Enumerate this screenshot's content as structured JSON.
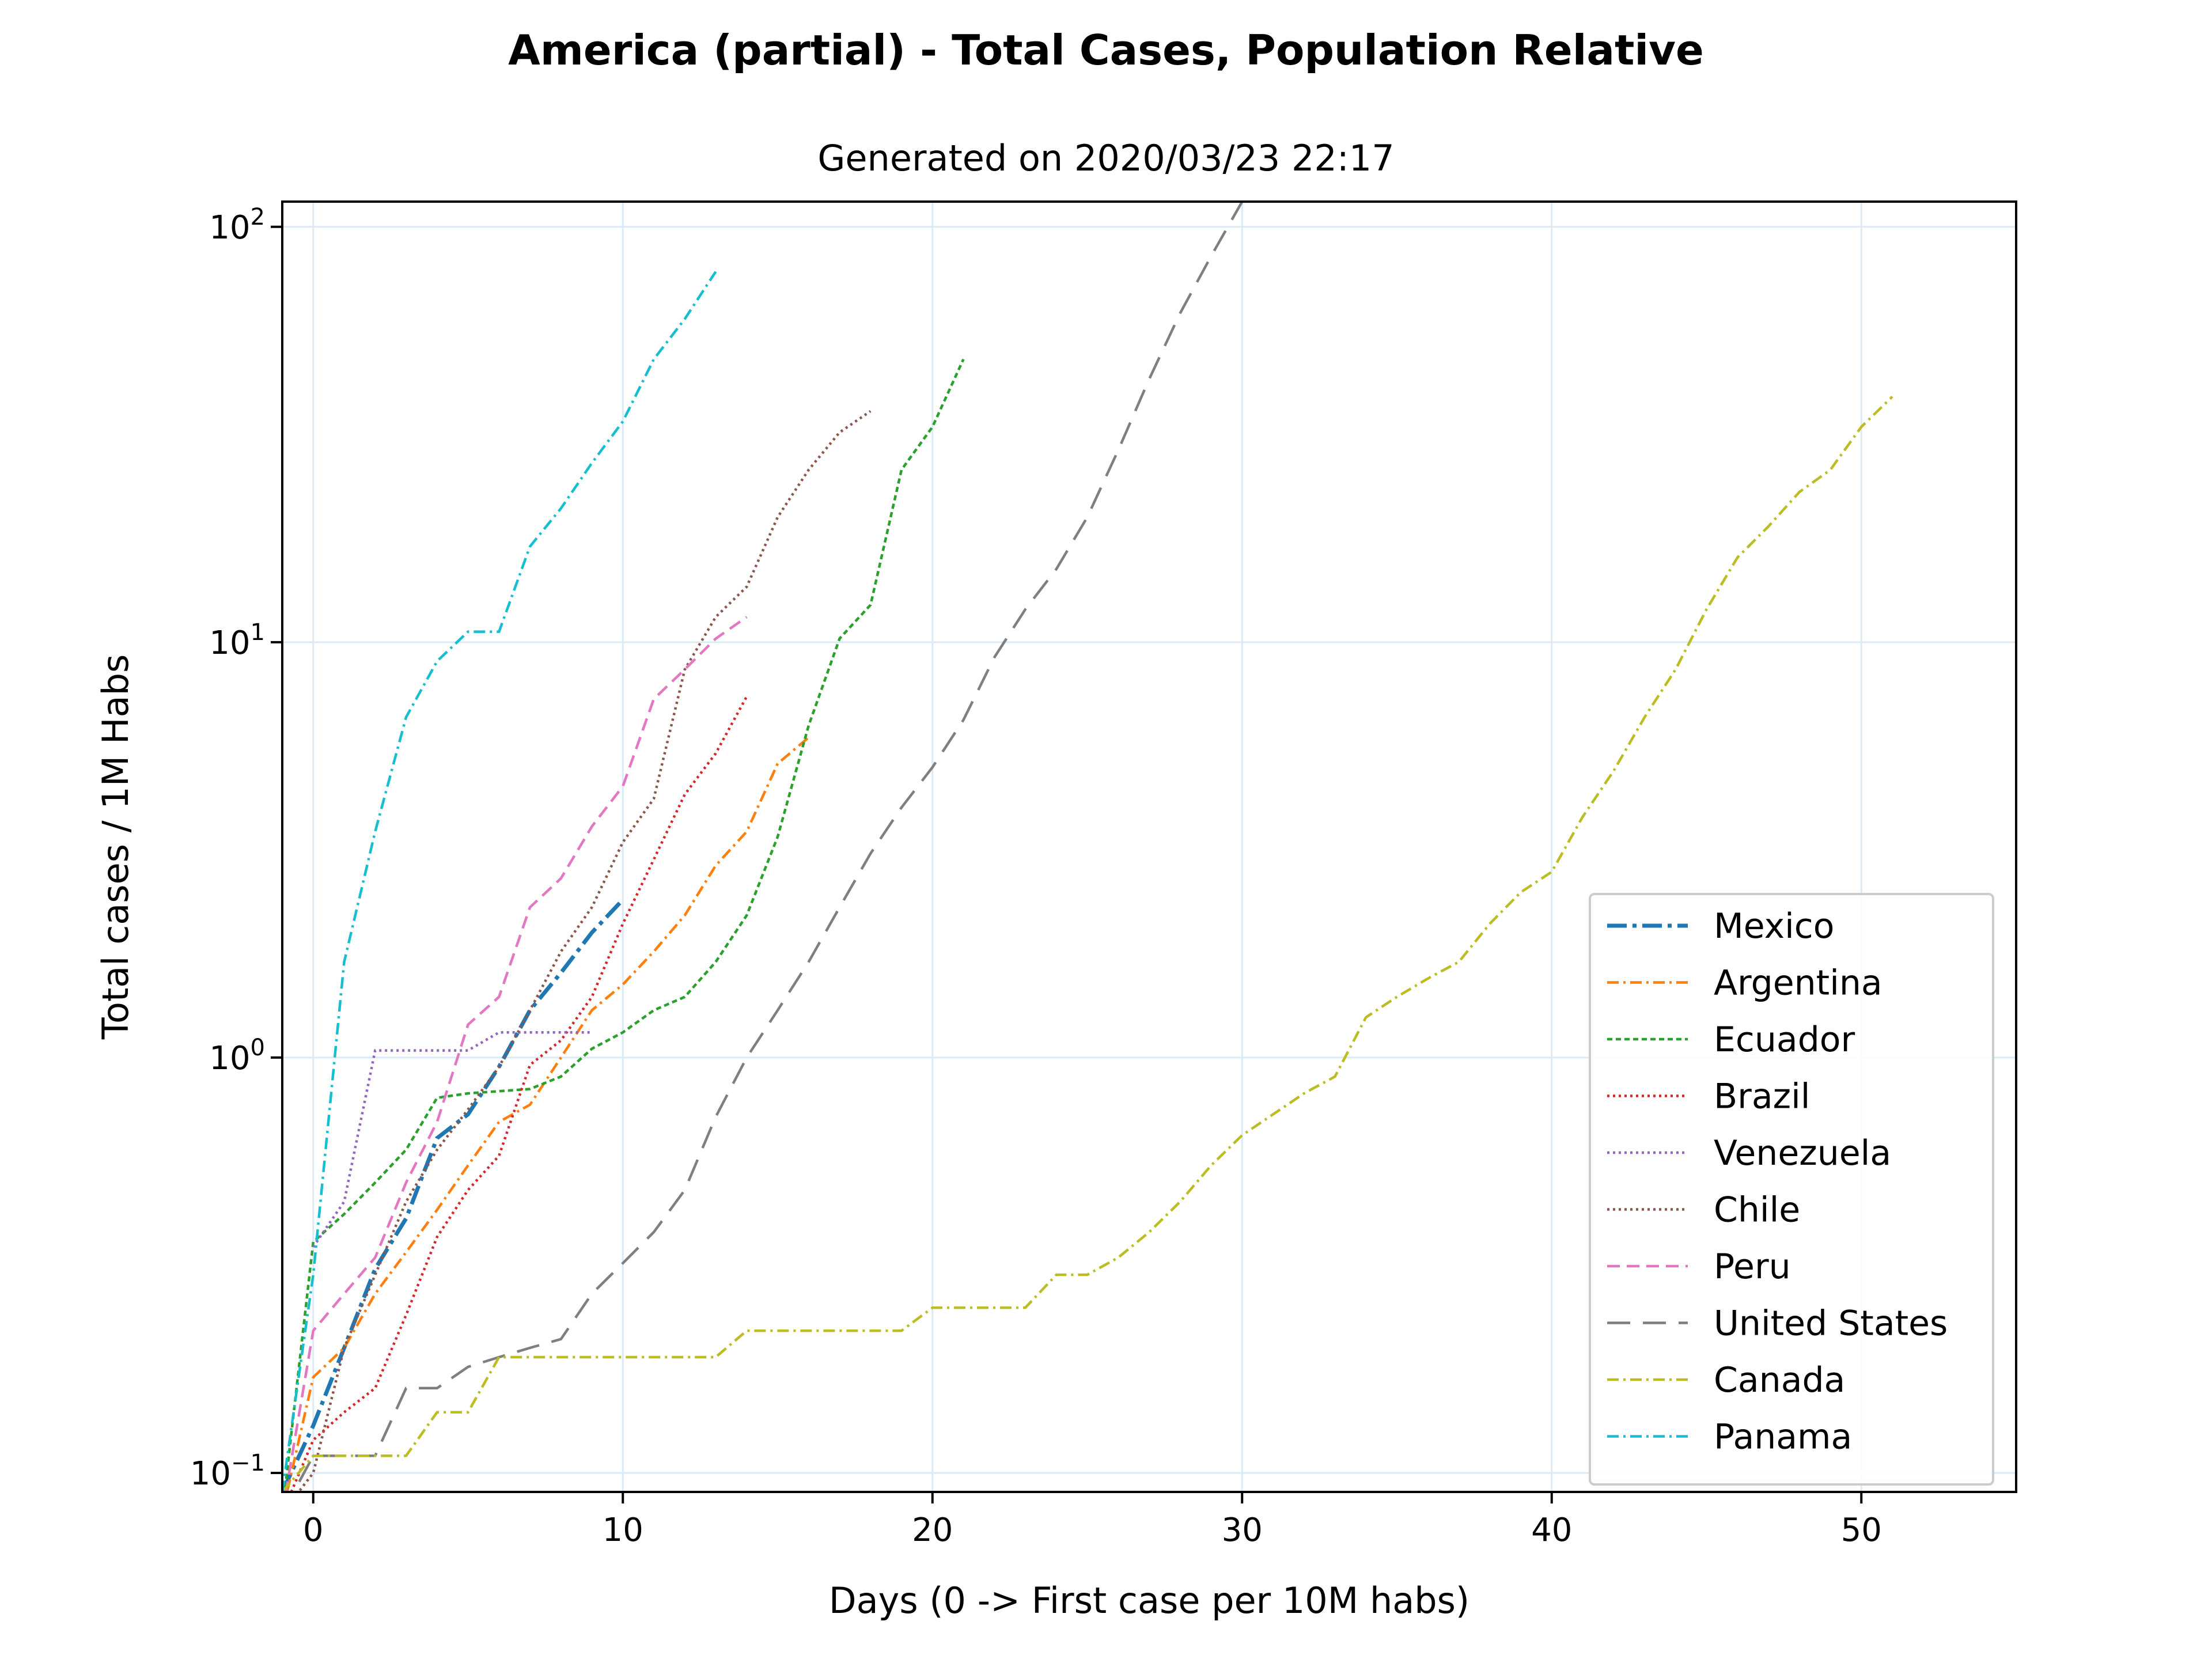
{
  "chart_data": {
    "type": "line",
    "title": "America (partial) - Total Cases, Population Relative",
    "subtitle": "Generated on 2020/03/23 22:17",
    "xlabel": "Days (0 -> First case per 10M habs)",
    "ylabel": "Total cases / 1M Habs",
    "xlim": [
      -1,
      55
    ],
    "ylim": [
      0.09,
      115
    ],
    "yscale": "log",
    "xticks": [
      0,
      10,
      20,
      30,
      40,
      50
    ],
    "yticks": [
      {
        "value": 0.1,
        "base": "10",
        "exp": "−1"
      },
      {
        "value": 1,
        "base": "10",
        "exp": "0"
      },
      {
        "value": 10,
        "base": "10",
        "exp": "1"
      },
      {
        "value": 100,
        "base": "10",
        "exp": "2"
      }
    ],
    "grid": true,
    "legend_position": "lower-right",
    "series": [
      {
        "name": "Mexico",
        "color": "#1f77b4",
        "dash": "dashdot-long",
        "x": [
          -1,
          0,
          1,
          2,
          3,
          4,
          5,
          6,
          7,
          8,
          9,
          10
        ],
        "y": [
          0.09,
          0.13,
          0.2,
          0.31,
          0.41,
          0.64,
          0.73,
          0.95,
          1.3,
          1.6,
          2.0,
          2.4
        ]
      },
      {
        "name": "Argentina",
        "color": "#ff7f0e",
        "dash": "dashdot",
        "x": [
          -1,
          0,
          1,
          2,
          3,
          4,
          5,
          6,
          7,
          8,
          9,
          10,
          11,
          12,
          13,
          14,
          15,
          16
        ],
        "y": [
          0.08,
          0.17,
          0.2,
          0.27,
          0.34,
          0.43,
          0.55,
          0.7,
          0.77,
          1.0,
          1.3,
          1.5,
          1.8,
          2.2,
          2.9,
          3.5,
          5.1,
          5.9
        ]
      },
      {
        "name": "Ecuador",
        "color": "#2ca02c",
        "dash": "dense-dash",
        "x": [
          -1,
          0,
          1,
          2,
          3,
          4,
          5,
          6,
          7,
          8,
          9,
          10,
          11,
          12,
          13,
          14,
          15,
          16,
          17,
          18,
          19,
          20,
          21
        ],
        "y": [
          0.08,
          0.36,
          0.42,
          0.5,
          0.6,
          0.8,
          0.82,
          0.83,
          0.84,
          0.9,
          1.05,
          1.15,
          1.3,
          1.4,
          1.7,
          2.2,
          3.4,
          6.3,
          10.2,
          12.3,
          26,
          33,
          48
        ]
      },
      {
        "name": "Brazil",
        "color": "#d62728",
        "dash": "dotted",
        "x": [
          -1,
          0,
          1,
          2,
          3,
          4,
          5,
          6,
          7,
          8,
          9,
          10,
          11,
          12,
          13,
          14
        ],
        "y": [
          0.08,
          0.12,
          0.14,
          0.16,
          0.24,
          0.37,
          0.48,
          0.58,
          0.96,
          1.1,
          1.4,
          2.1,
          3.0,
          4.3,
          5.4,
          7.4
        ]
      },
      {
        "name": "Venezuela",
        "color": "#9467bd",
        "dash": "dotted",
        "x": [
          0,
          1,
          2,
          3,
          4,
          5,
          6,
          7,
          8,
          9
        ],
        "y": [
          0.35,
          0.45,
          1.04,
          1.04,
          1.04,
          1.04,
          1.15,
          1.15,
          1.15,
          1.15
        ]
      },
      {
        "name": "Chile",
        "color": "#8c564b",
        "dash": "dotted",
        "x": [
          -1,
          0,
          1,
          2,
          3,
          4,
          5,
          6,
          7,
          8,
          9,
          10,
          11,
          12,
          13,
          14,
          15,
          16,
          17,
          18
        ],
        "y": [
          0.08,
          0.1,
          0.2,
          0.3,
          0.45,
          0.6,
          0.75,
          0.95,
          1.3,
          1.8,
          2.3,
          3.3,
          4.2,
          8.6,
          11.5,
          13.6,
          20,
          26,
          32,
          36
        ]
      },
      {
        "name": "Peru",
        "color": "#e377c2",
        "dash": "dashed",
        "x": [
          -1,
          0,
          1,
          2,
          3,
          4,
          5,
          6,
          7,
          8,
          9,
          10,
          11,
          12,
          13,
          14
        ],
        "y": [
          0.08,
          0.22,
          0.27,
          0.33,
          0.5,
          0.7,
          1.2,
          1.4,
          2.3,
          2.7,
          3.6,
          4.5,
          7.3,
          8.6,
          10.2,
          11.5
        ]
      },
      {
        "name": "United States",
        "color": "#7f7f7f",
        "dash": "long-dash",
        "x": [
          -1,
          0,
          1,
          2,
          3,
          4,
          5,
          6,
          7,
          8,
          9,
          10,
          11,
          12,
          13,
          14,
          15,
          16,
          17,
          18,
          19,
          20,
          21,
          22,
          23,
          24,
          25,
          26,
          27,
          28,
          29,
          30
        ],
        "y": [
          0.08,
          0.11,
          0.11,
          0.11,
          0.16,
          0.16,
          0.18,
          0.19,
          0.2,
          0.21,
          0.27,
          0.32,
          0.38,
          0.48,
          0.72,
          1.0,
          1.3,
          1.7,
          2.3,
          3.1,
          4.0,
          5.0,
          6.5,
          9.2,
          12,
          15,
          20,
          29,
          43,
          62,
          85,
          115
        ]
      },
      {
        "name": "Canada",
        "color": "#bcbd22",
        "dash": "dashdot",
        "x": [
          -1,
          0,
          1,
          2,
          3,
          4,
          5,
          6,
          7,
          8,
          9,
          10,
          11,
          12,
          13,
          14,
          15,
          16,
          17,
          18,
          19,
          20,
          21,
          22,
          23,
          24,
          25,
          26,
          27,
          28,
          29,
          30,
          31,
          32,
          33,
          34,
          35,
          36,
          37,
          38,
          39,
          40,
          41,
          42,
          43,
          44,
          45,
          46,
          47,
          48,
          49,
          50,
          51
        ],
        "y": [
          0.09,
          0.11,
          0.11,
          0.11,
          0.11,
          0.14,
          0.14,
          0.19,
          0.19,
          0.19,
          0.19,
          0.19,
          0.19,
          0.19,
          0.19,
          0.22,
          0.22,
          0.22,
          0.22,
          0.22,
          0.22,
          0.25,
          0.25,
          0.25,
          0.25,
          0.3,
          0.3,
          0.33,
          0.38,
          0.45,
          0.55,
          0.65,
          0.73,
          0.82,
          0.9,
          1.25,
          1.4,
          1.55,
          1.7,
          2.1,
          2.5,
          2.8,
          3.8,
          4.9,
          6.6,
          8.6,
          12,
          16,
          19,
          23,
          26,
          33,
          39
        ]
      },
      {
        "name": "Panama",
        "color": "#17becf",
        "dash": "dashdot",
        "x": [
          -1,
          0,
          1,
          2,
          3,
          4,
          5,
          6,
          7,
          8,
          9,
          10,
          11,
          12,
          13
        ],
        "y": [
          0.09,
          0.3,
          1.7,
          3.5,
          6.6,
          9.0,
          10.6,
          10.6,
          17,
          21,
          27,
          34,
          48,
          60,
          78
        ]
      }
    ]
  }
}
